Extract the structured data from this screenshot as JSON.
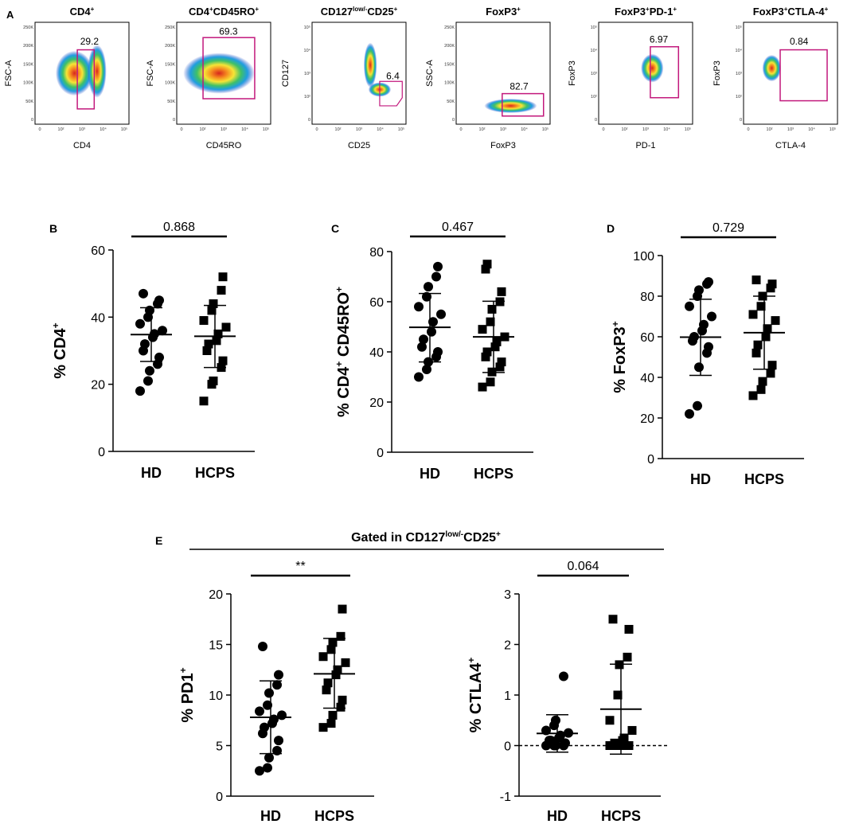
{
  "panel_labels": {
    "A": "A",
    "B": "B",
    "C": "C",
    "D": "D",
    "E": "E"
  },
  "gated_label": {
    "prefix": "Gated in CD127",
    "sup1": "low/-",
    "mid": "CD25",
    "sup2": "+"
  },
  "flow_panels": [
    {
      "title": "CD4",
      "sup": "+",
      "title2": "",
      "sup2": "",
      "ylabel": "FSC-A",
      "xlabel": "CD4",
      "gate_value": "29.2"
    },
    {
      "title": "CD4",
      "sup": "+",
      "title2": "CD45RO",
      "sup2": "+",
      "ylabel": "FSC-A",
      "xlabel": "CD45RO",
      "gate_value": "69.3"
    },
    {
      "title": "CD127",
      "sup": "low/-",
      "title2": "CD25",
      "sup2": "+",
      "ylabel": "CD127",
      "xlabel": "CD25",
      "gate_value": "6.4"
    },
    {
      "title": "FoxP3",
      "sup": "+",
      "title2": "",
      "sup2": "",
      "ylabel": "SSC-A",
      "xlabel": "FoxP3",
      "gate_value": "82.7"
    },
    {
      "title": "FoxP3",
      "sup": "+",
      "title2": "PD-1",
      "sup2": "+",
      "ylabel": "FoxP3",
      "xlabel": "PD-1",
      "gate_value": "6.97"
    },
    {
      "title": "FoxP3",
      "sup": "+",
      "title2": "CTLA-4",
      "sup2": "+",
      "ylabel": "FoxP3",
      "xlabel": "CTLA-4",
      "gate_value": "0.84"
    }
  ],
  "flow_axis_ticks": {
    "x": [
      "0",
      "10²",
      "10³",
      "10⁴",
      "10⁵"
    ],
    "y_fsc": [
      "0",
      "50K",
      "100K",
      "150K",
      "200K",
      "250K"
    ],
    "y_log": [
      "0",
      "10²",
      "10³",
      "10⁴",
      "10⁵"
    ]
  },
  "chart_data": [
    {
      "id": "B",
      "type": "scatter",
      "categories": [
        "HD",
        "HCPS"
      ],
      "ylabel": "% CD4",
      "ylabel_sup": "+",
      "ylabel_mid": "",
      "ylabel_sup2": "",
      "ylim": [
        0,
        60
      ],
      "yticks": [
        0,
        20,
        40,
        60
      ],
      "pvalue": "0.868",
      "series": [
        {
          "name": "HD",
          "marker": "circle",
          "values": [
            18,
            21,
            24,
            26,
            28,
            30,
            32,
            34,
            35,
            36,
            38,
            40,
            42,
            44,
            45,
            47
          ],
          "mean": 34.8,
          "sd_low": 26.8,
          "sd_high": 42.8
        },
        {
          "name": "HCPS",
          "marker": "square",
          "values": [
            15,
            20,
            21,
            25,
            27,
            30,
            32,
            33,
            35,
            37,
            39,
            42,
            44,
            48,
            52
          ],
          "mean": 34.3,
          "sd_low": 25.0,
          "sd_high": 43.5
        }
      ]
    },
    {
      "id": "C",
      "type": "scatter",
      "categories": [
        "HD",
        "HCPS"
      ],
      "ylabel": "% CD4",
      "ylabel_sup": "+",
      "ylabel_mid": " CD45RO",
      "ylabel_sup2": "+",
      "ylim": [
        0,
        80
      ],
      "yticks": [
        0,
        20,
        40,
        60,
        80
      ],
      "pvalue": "0.467",
      "series": [
        {
          "name": "HD",
          "marker": "circle",
          "values": [
            30,
            33,
            36,
            38,
            40,
            42,
            45,
            48,
            52,
            55,
            58,
            62,
            66,
            70,
            74
          ],
          "mean": 49.8,
          "sd_low": 36.0,
          "sd_high": 63.3
        },
        {
          "name": "HCPS",
          "marker": "square",
          "values": [
            26,
            28,
            32,
            34,
            36,
            38,
            40,
            42,
            44,
            46,
            49,
            52,
            57,
            60,
            64,
            73,
            75
          ],
          "mean": 46.0,
          "sd_low": 31.8,
          "sd_high": 60.2
        }
      ]
    },
    {
      "id": "D",
      "type": "scatter",
      "categories": [
        "HD",
        "HCPS"
      ],
      "ylabel": "% FoxP3",
      "ylabel_sup": "+",
      "ylabel_mid": "",
      "ylabel_sup2": "",
      "ylim": [
        0,
        100
      ],
      "yticks": [
        0,
        20,
        40,
        60,
        80,
        100
      ],
      "pvalue": "0.729",
      "series": [
        {
          "name": "HD",
          "marker": "circle",
          "values": [
            22,
            26,
            45,
            52,
            55,
            58,
            60,
            63,
            66,
            70,
            75,
            80,
            83,
            86,
            87
          ],
          "mean": 59.8,
          "sd_low": 41.0,
          "sd_high": 78.5
        },
        {
          "name": "HCPS",
          "marker": "square",
          "values": [
            31,
            34,
            38,
            42,
            46,
            52,
            56,
            60,
            64,
            68,
            71,
            75,
            80,
            84,
            86,
            88
          ],
          "mean": 62.0,
          "sd_low": 44.0,
          "sd_high": 80.0
        }
      ]
    },
    {
      "id": "E1",
      "type": "scatter",
      "categories": [
        "HD",
        "HCPS"
      ],
      "ylabel": "% PD1",
      "ylabel_sup": "+",
      "ylabel_mid": "",
      "ylabel_sup2": "",
      "ylim": [
        0,
        20
      ],
      "yticks": [
        0,
        5,
        10,
        15,
        20
      ],
      "pvalue": "**",
      "series": [
        {
          "name": "HD",
          "marker": "circle",
          "values": [
            2.5,
            2.8,
            3.8,
            4.5,
            5.5,
            6.2,
            6.8,
            7.2,
            7.6,
            8.0,
            8.4,
            9.0,
            10.2,
            11.0,
            12.0,
            14.8
          ],
          "mean": 7.8,
          "sd_low": 4.2,
          "sd_high": 11.4
        },
        {
          "name": "HCPS",
          "marker": "square",
          "values": [
            6.8,
            7.2,
            8.0,
            8.8,
            9.5,
            10.5,
            11.2,
            12.0,
            12.5,
            13.2,
            13.8,
            14.5,
            15.2,
            15.8,
            18.5
          ],
          "mean": 12.1,
          "sd_low": 8.7,
          "sd_high": 15.6
        }
      ]
    },
    {
      "id": "E2",
      "type": "scatter",
      "categories": [
        "HD",
        "HCPS"
      ],
      "ylabel": "% CTLA4",
      "ylabel_sup": "+",
      "ylabel_mid": "",
      "ylabel_sup2": "",
      "ylim": [
        -1,
        3
      ],
      "yticks": [
        -1,
        0,
        1,
        2,
        3
      ],
      "pvalue": "0.064",
      "dashed_zero": true,
      "series": [
        {
          "name": "HD",
          "marker": "circle",
          "values": [
            0.0,
            0.0,
            0.0,
            0.0,
            0.05,
            0.1,
            0.1,
            0.15,
            0.2,
            0.25,
            0.3,
            0.4,
            0.5,
            1.37
          ],
          "mean": 0.24,
          "sd_low": -0.13,
          "sd_high": 0.61
        },
        {
          "name": "HCPS",
          "marker": "square",
          "values": [
            0.0,
            0.0,
            0.0,
            0.0,
            0.0,
            0.0,
            0.05,
            0.1,
            0.15,
            0.3,
            0.5,
            1.0,
            1.6,
            1.75,
            2.3,
            2.5
          ],
          "mean": 0.72,
          "sd_low": -0.17,
          "sd_high": 1.61
        }
      ]
    }
  ]
}
